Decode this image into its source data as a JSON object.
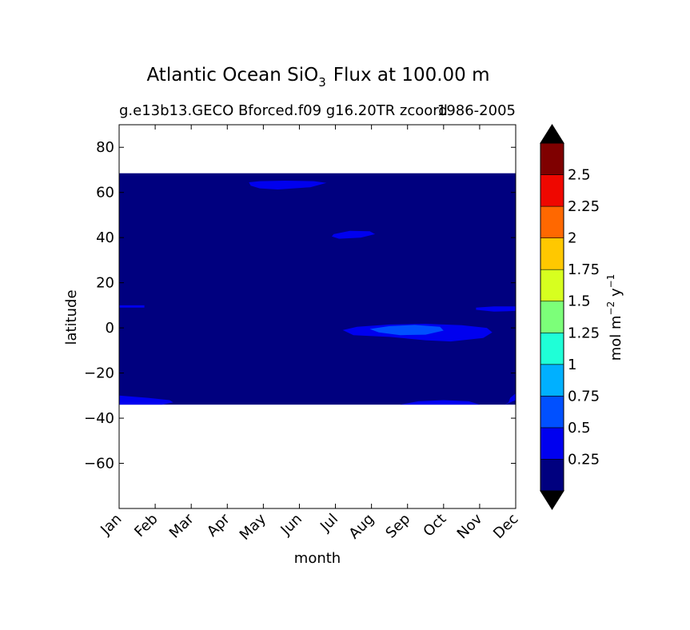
{
  "chart_data": {
    "type": "heatmap",
    "title": "Atlantic Ocean SiO",
    "title_subscript": "3",
    "title_suffix": "Flux at 100.00 m",
    "subtitle_left": "g.e13b13.GECO Bforced.f09 g16.20TR zcoord",
    "subtitle_right": "1986-2005",
    "xlabel": "month",
    "ylabel": "latitude",
    "x_categories": [
      "Jan",
      "Feb",
      "Mar",
      "Apr",
      "May",
      "Jun",
      "Jul",
      "Aug",
      "Sep",
      "Oct",
      "Nov",
      "Dec"
    ],
    "ylim": [
      -80,
      90
    ],
    "y_ticks": [
      80,
      60,
      40,
      20,
      0,
      -20,
      -40,
      -60
    ],
    "y_tick_labels": [
      "80",
      "60",
      "40",
      "20",
      "0",
      "−20",
      "−40",
      "−60"
    ],
    "data_lat_range": [
      -34,
      68.5
    ],
    "colorbar": {
      "label": "mol m",
      "label_sup1": "−2",
      "label_mid": " y",
      "label_sup2": "−1",
      "levels": [
        0,
        0.25,
        0.5,
        0.75,
        1,
        1.25,
        1.5,
        1.75,
        2,
        2.25,
        2.5,
        2.75
      ],
      "tick_labels": [
        "0.25",
        "0.5",
        "0.75",
        "1",
        "1.25",
        "1.5",
        "1.75",
        "2",
        "2.25",
        "2.5"
      ],
      "colors": [
        "#00007f",
        "#0000ef",
        "#0050ff",
        "#00b0ff",
        "#1fffd7",
        "#7cff79",
        "#d7ff1f",
        "#ffc800",
        "#ff6800",
        "#ef0700",
        "#7f0000"
      ],
      "extend_colors": {
        "under": "#000000",
        "over": "#000000"
      }
    },
    "background_fill": "#00007f",
    "regions": [
      {
        "level": 1,
        "points": [
          [
            3.6,
            64.5
          ],
          [
            3.9,
            65
          ],
          [
            4.6,
            65.2
          ],
          [
            5.4,
            65
          ],
          [
            5.75,
            64.2
          ],
          [
            5.3,
            62.3
          ],
          [
            4.4,
            61.3
          ],
          [
            3.9,
            61.8
          ],
          [
            3.65,
            63
          ]
        ]
      },
      {
        "level": 1,
        "points": [
          [
            5.95,
            41.5
          ],
          [
            6.4,
            43
          ],
          [
            6.95,
            42.8
          ],
          [
            7.1,
            41.5
          ],
          [
            6.7,
            40
          ],
          [
            6.1,
            39.5
          ],
          [
            5.9,
            40.5
          ]
        ]
      },
      {
        "level": 1,
        "points": [
          [
            0,
            10
          ],
          [
            0.7,
            10
          ],
          [
            0.7,
            9
          ],
          [
            0,
            9
          ]
        ]
      },
      {
        "level": 1,
        "points": [
          [
            9.9,
            9
          ],
          [
            10.4,
            9.5
          ],
          [
            11,
            9.5
          ],
          [
            11,
            7.5
          ],
          [
            10.4,
            7.2
          ],
          [
            9.9,
            8
          ]
        ]
      },
      {
        "level": 1,
        "points": [
          [
            6.2,
            -1
          ],
          [
            6.6,
            0.5
          ],
          [
            7.5,
            1.5
          ],
          [
            8.5,
            1.8
          ],
          [
            9.5,
            1.2
          ],
          [
            10.2,
            0
          ],
          [
            10.35,
            -2
          ],
          [
            10.1,
            -4.5
          ],
          [
            9.2,
            -6
          ],
          [
            8.5,
            -5.5
          ],
          [
            7.5,
            -4
          ],
          [
            6.5,
            -3.2
          ]
        ]
      },
      {
        "level": 2,
        "points": [
          [
            6.95,
            -0.5
          ],
          [
            7.5,
            0.8
          ],
          [
            8.2,
            1.3
          ],
          [
            8.9,
            0.5
          ],
          [
            9.0,
            -1.2
          ],
          [
            8.5,
            -3
          ],
          [
            7.8,
            -3.2
          ],
          [
            7.2,
            -2
          ]
        ]
      },
      {
        "level": 1,
        "points": [
          [
            0,
            -30
          ],
          [
            0.8,
            -31
          ],
          [
            1.4,
            -32
          ],
          [
            1.5,
            -33
          ],
          [
            1.2,
            -34
          ],
          [
            0,
            -34
          ]
        ]
      },
      {
        "level": 1,
        "points": [
          [
            7.8,
            -34
          ],
          [
            8.3,
            -32.5
          ],
          [
            9.0,
            -32
          ],
          [
            9.7,
            -32.5
          ],
          [
            10.0,
            -34
          ]
        ]
      },
      {
        "level": 1,
        "points": [
          [
            10.7,
            -34
          ],
          [
            11,
            -32
          ],
          [
            11,
            -29
          ],
          [
            10.85,
            -31
          ],
          [
            10.8,
            -33
          ]
        ]
      }
    ]
  }
}
